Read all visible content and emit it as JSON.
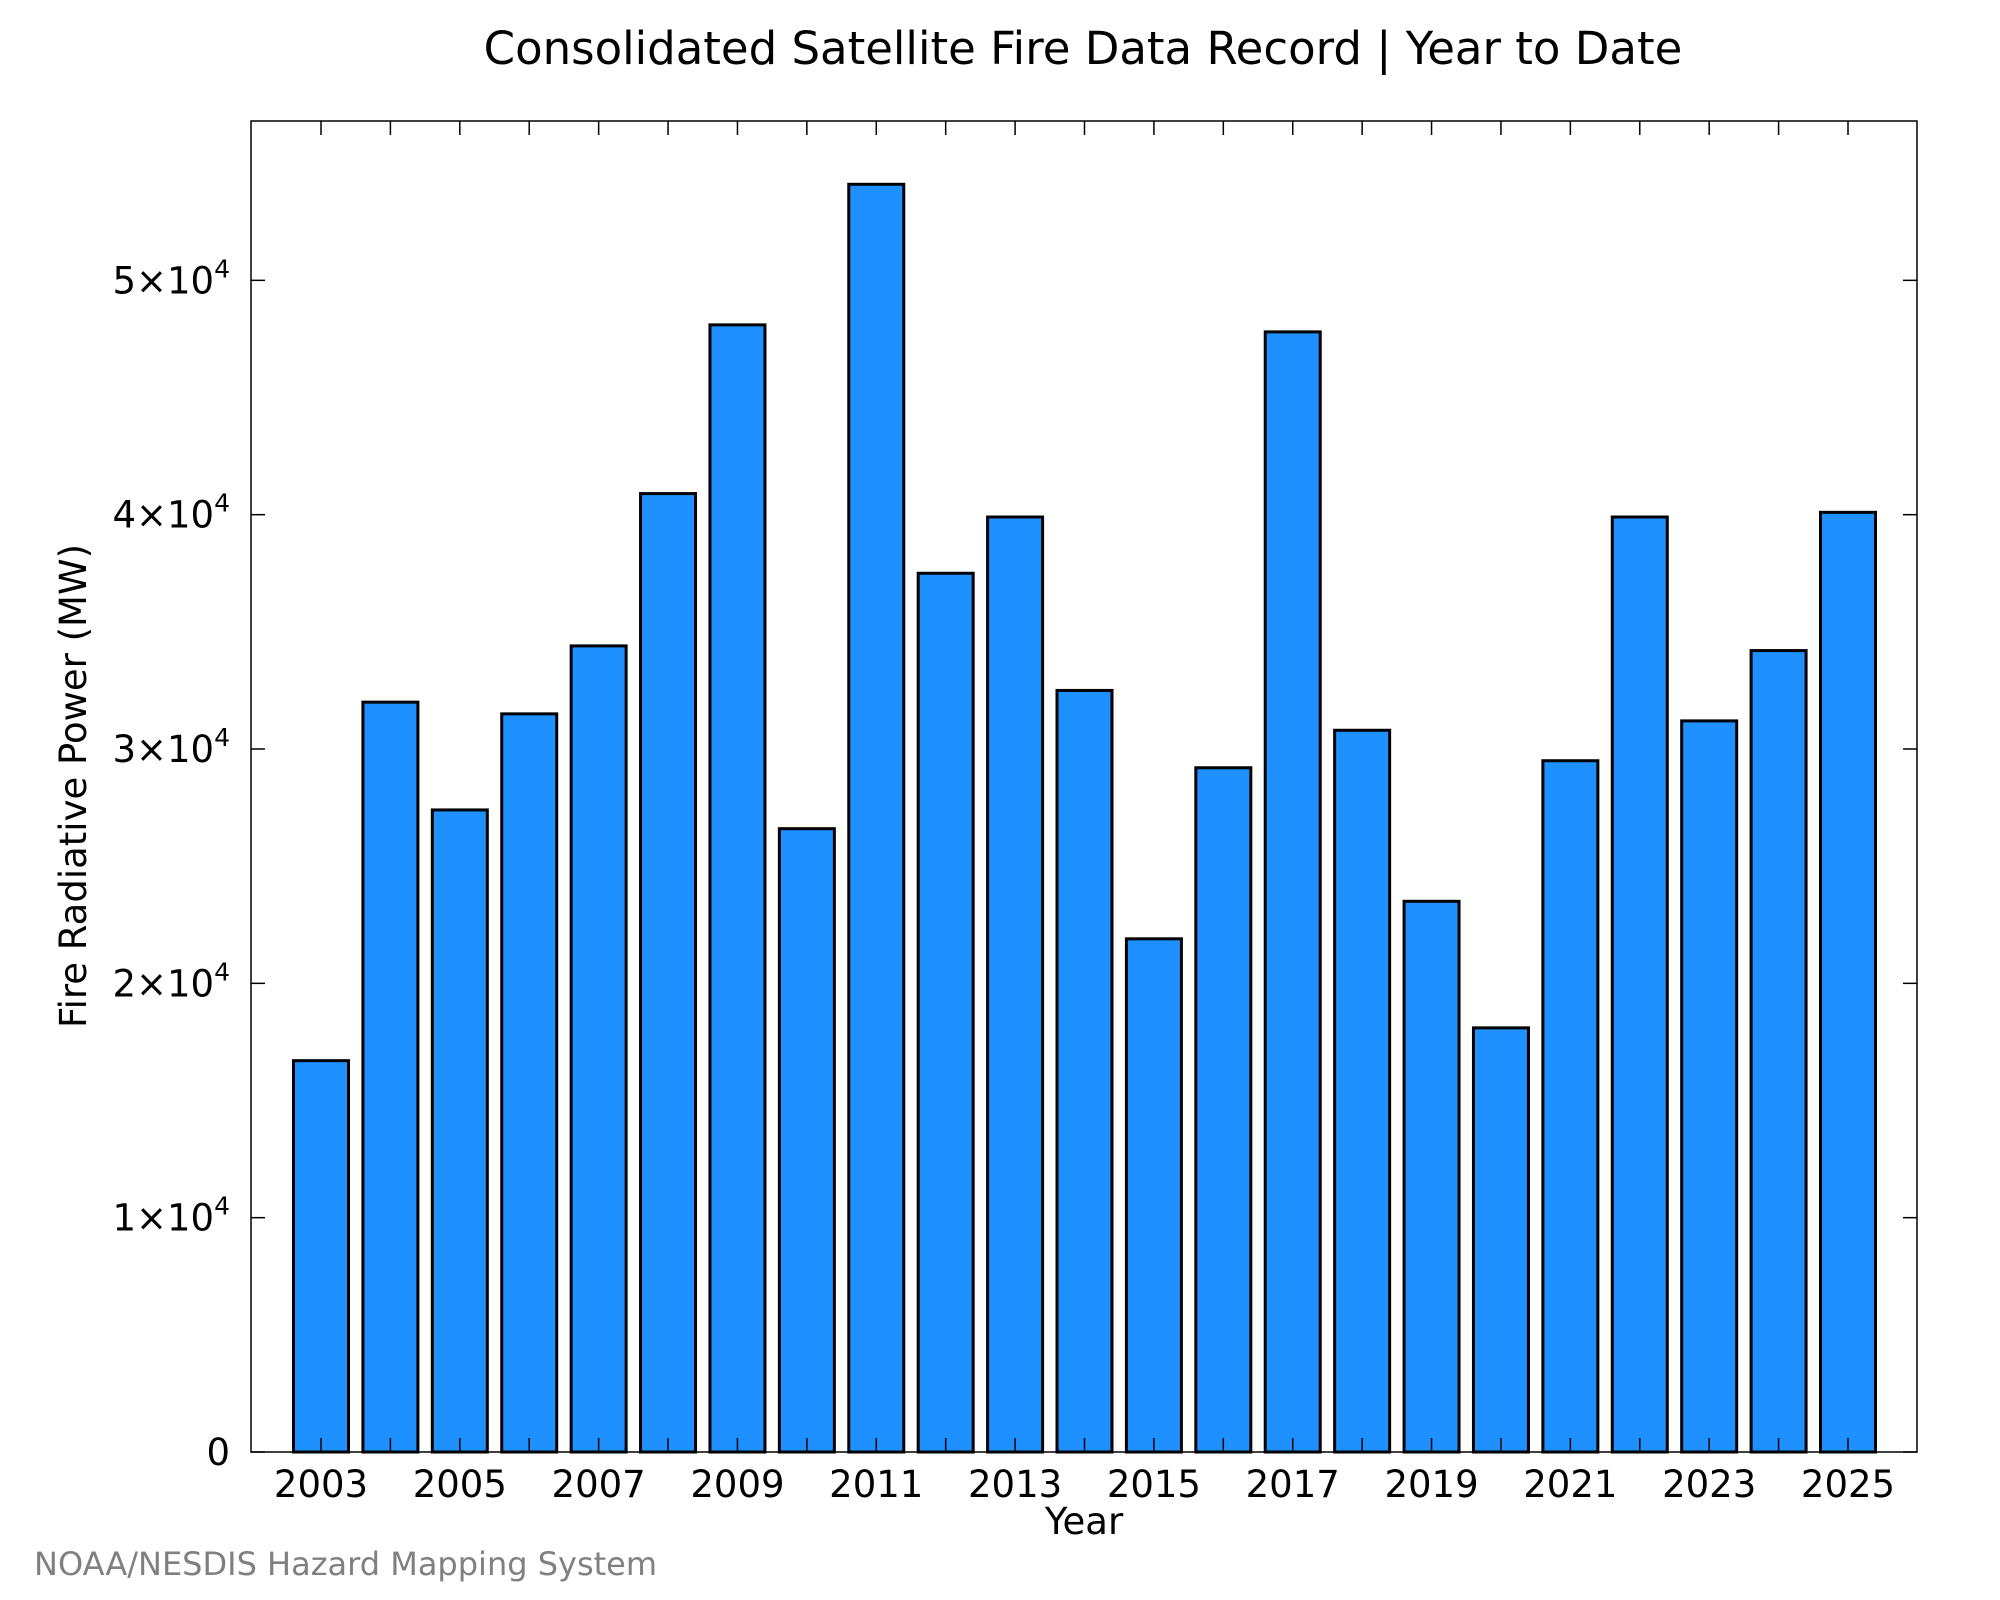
{
  "chart_data": {
    "type": "bar",
    "title": "Consolidated Satellite Fire Data Record | Year to Date",
    "xlabel": "Year",
    "ylabel": "Fire Radiative Power (MW)",
    "categories": [
      "2003",
      "2004",
      "2005",
      "2006",
      "2007",
      "2008",
      "2009",
      "2010",
      "2011",
      "2012",
      "2013",
      "2014",
      "2015",
      "2016",
      "2017",
      "2018",
      "2019",
      "2020",
      "2021",
      "2022",
      "2023",
      "2024",
      "2025"
    ],
    "values": [
      16700,
      32000,
      27400,
      31500,
      34400,
      40900,
      48100,
      26600,
      54100,
      37500,
      39900,
      32500,
      21900,
      29200,
      47800,
      30800,
      23500,
      18100,
      29500,
      39900,
      31200,
      34200,
      40100
    ],
    "x_tick_labels": [
      "2003",
      "2005",
      "2007",
      "2009",
      "2011",
      "2013",
      "2015",
      "2017",
      "2019",
      "2021",
      "2023",
      "2025"
    ],
    "y_ticks": [
      {
        "value": 0,
        "mantissa": "0",
        "exponent": ""
      },
      {
        "value": 10000,
        "mantissa": "1×10",
        "exponent": "4"
      },
      {
        "value": 20000,
        "mantissa": "2×10",
        "exponent": "4"
      },
      {
        "value": 30000,
        "mantissa": "3×10",
        "exponent": "4"
      },
      {
        "value": 40000,
        "mantissa": "4×10",
        "exponent": "4"
      },
      {
        "value": 50000,
        "mantissa": "5×10",
        "exponent": "4"
      }
    ],
    "ylim": [
      0,
      56800
    ],
    "bar_color": "#1e90ff",
    "grid": false,
    "legend": "none"
  },
  "footer": "NOAA/NESDIS Hazard Mapping System"
}
